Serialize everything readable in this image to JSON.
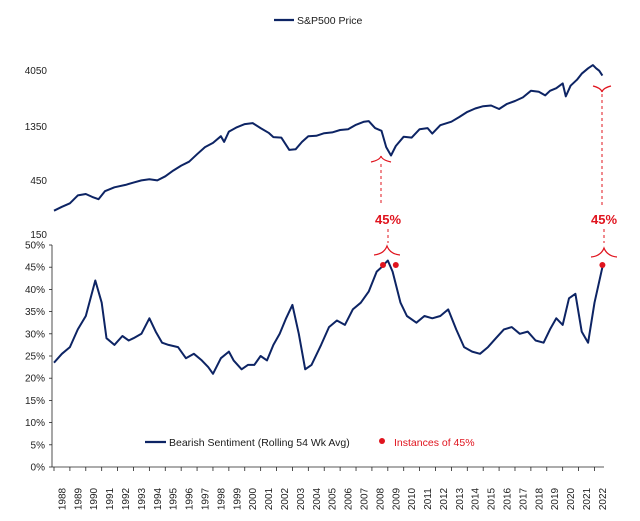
{
  "colors": {
    "series": "#0d2464",
    "annotation": "#e0141e",
    "text": "#222222"
  },
  "chart_data": [
    {
      "type": "line",
      "title": "",
      "legend": {
        "label": "S&P500 Price",
        "placement": "top-center"
      },
      "y_scale": "log",
      "ylim": [
        150,
        5000
      ],
      "y_ticks": [
        150,
        450,
        1350,
        4050
      ],
      "y_tick_labels": [
        "150",
        "450",
        "1350",
        "4050"
      ],
      "grid": false,
      "series": [
        {
          "name": "S&P500 Price",
          "x": [
            1988.0,
            1988.5,
            1989.0,
            1989.5,
            1990.0,
            1990.4,
            1990.8,
            1991.2,
            1991.8,
            1992.5,
            1993.0,
            1993.5,
            1994.0,
            1994.5,
            1995.0,
            1995.5,
            1996.0,
            1996.5,
            1997.0,
            1997.5,
            1998.0,
            1998.5,
            1998.7,
            1999.0,
            1999.5,
            2000.0,
            2000.5,
            2001.0,
            2001.5,
            2001.8,
            2002.3,
            2002.8,
            2003.2,
            2003.6,
            2004.0,
            2004.5,
            2005.0,
            2005.5,
            2006.0,
            2006.5,
            2007.0,
            2007.5,
            2007.8,
            2008.2,
            2008.6,
            2008.9,
            2009.2,
            2009.5,
            2010.0,
            2010.5,
            2011.0,
            2011.5,
            2011.8,
            2012.3,
            2013.0,
            2013.5,
            2014.0,
            2014.5,
            2015.0,
            2015.5,
            2016.0,
            2016.5,
            2017.0,
            2017.5,
            2018.0,
            2018.5,
            2018.9,
            2019.2,
            2019.6,
            2020.0,
            2020.2,
            2020.5,
            2020.9,
            2021.2,
            2021.6,
            2021.9,
            2022.1,
            2022.3,
            2022.5
          ],
          "values": [
            250,
            270,
            290,
            340,
            350,
            330,
            315,
            370,
            400,
            420,
            440,
            460,
            470,
            460,
            500,
            560,
            620,
            670,
            780,
            900,
            980,
            1120,
            1000,
            1230,
            1340,
            1430,
            1460,
            1320,
            1200,
            1100,
            1090,
            850,
            860,
            1000,
            1120,
            1130,
            1190,
            1210,
            1270,
            1290,
            1410,
            1500,
            1520,
            1320,
            1250,
            900,
            760,
            920,
            1110,
            1090,
            1290,
            1320,
            1180,
            1400,
            1500,
            1650,
            1830,
            1960,
            2050,
            2080,
            1940,
            2150,
            2280,
            2450,
            2800,
            2750,
            2550,
            2800,
            2950,
            3250,
            2500,
            3100,
            3500,
            3950,
            4400,
            4700,
            4400,
            4200,
            3800
          ]
        }
      ]
    },
    {
      "type": "line",
      "title": "",
      "ylim": [
        0,
        50
      ],
      "y_ticks": [
        0,
        5,
        10,
        15,
        20,
        25,
        30,
        35,
        40,
        45,
        50
      ],
      "y_tick_labels": [
        "0%",
        "5%",
        "10%",
        "15%",
        "20%",
        "25%",
        "30%",
        "35%",
        "40%",
        "45%",
        "50%"
      ],
      "x_tick_labels": [
        "1988",
        "1989",
        "1990",
        "1991",
        "1992",
        "1993",
        "1994",
        "1995",
        "1996",
        "1997",
        "1998",
        "1999",
        "2000",
        "2001",
        "2002",
        "2003",
        "2004",
        "2005",
        "2006",
        "2007",
        "2008",
        "2009",
        "2010",
        "2011",
        "2012",
        "2013",
        "2014",
        "2015",
        "2016",
        "2017",
        "2018",
        "2019",
        "2020",
        "2021",
        "2022"
      ],
      "grid": false,
      "series": [
        {
          "name": "Bearish Sentiment (Rolling 54 Wk Avg)",
          "x": [
            1988.0,
            1988.5,
            1989.0,
            1989.5,
            1990.0,
            1990.6,
            1991.0,
            1991.3,
            1991.8,
            1992.3,
            1992.7,
            1993.0,
            1993.5,
            1994.0,
            1994.4,
            1994.8,
            1995.2,
            1995.8,
            1996.3,
            1996.8,
            1997.3,
            1997.7,
            1998.0,
            1998.5,
            1999.0,
            1999.3,
            1999.8,
            2000.2,
            2000.6,
            2001.0,
            2001.4,
            2001.8,
            2002.2,
            2002.6,
            2003.0,
            2003.4,
            2003.8,
            2004.2,
            2004.8,
            2005.3,
            2005.8,
            2006.3,
            2006.8,
            2007.3,
            2007.8,
            2008.3,
            2008.6,
            2009.0,
            2009.3,
            2009.8,
            2010.2,
            2010.8,
            2011.3,
            2011.8,
            2012.3,
            2012.8,
            2013.3,
            2013.8,
            2014.3,
            2014.8,
            2015.3,
            2015.8,
            2016.3,
            2016.8,
            2017.3,
            2017.8,
            2018.3,
            2018.8,
            2019.2,
            2019.6,
            2020.0,
            2020.4,
            2020.8,
            2021.2,
            2021.6,
            2022.0,
            2022.5
          ],
          "values": [
            23.5,
            25.5,
            27,
            31,
            34,
            42,
            37,
            29,
            27.5,
            29.5,
            28.5,
            29,
            30,
            33.5,
            30.5,
            28,
            27.5,
            27,
            24.5,
            25.5,
            24,
            22.5,
            21,
            24.5,
            26,
            24,
            22,
            23,
            23,
            25,
            24,
            27.5,
            30,
            33.5,
            36.5,
            30,
            22,
            23,
            27.5,
            31.5,
            33,
            32,
            35.5,
            37,
            39.5,
            44,
            45,
            46.5,
            44,
            37,
            34,
            32.5,
            34,
            33.5,
            34,
            35.5,
            31,
            27,
            26,
            25.5,
            27,
            29,
            31,
            31.5,
            30,
            30.5,
            28.5,
            28,
            31,
            33.5,
            32,
            38,
            39,
            30.5,
            28,
            37,
            45
          ]
        },
        {
          "name": "Instances of 45%",
          "kind": "points",
          "x": [
            2008.7,
            2009.5,
            2022.5
          ],
          "values": [
            45.5,
            45.5,
            45.5
          ]
        }
      ]
    }
  ],
  "annotations": [
    "45%",
    "45%"
  ]
}
